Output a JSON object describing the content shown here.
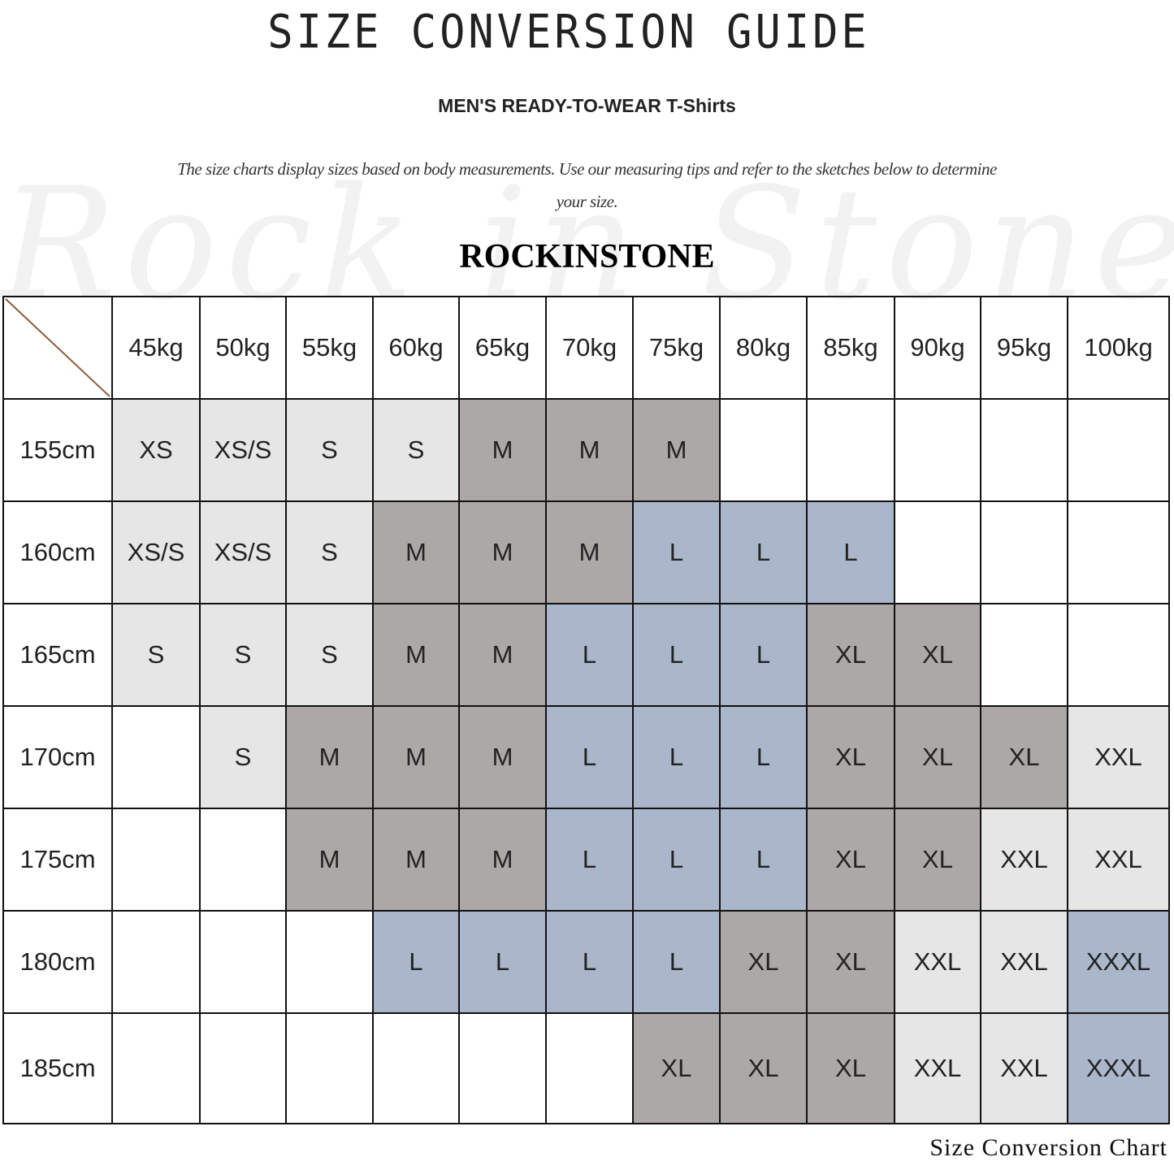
{
  "title": "SIZE CONVERSION GUIDE",
  "subtitle": "MEN'S READY-TO-WEAR T-Shirts",
  "description": "The size charts display sizes based on body measurements. Use our measuring tips and refer to the sketches below to determine your size.",
  "watermark": "Rock in Stone",
  "brand": "ROCKINSTONE",
  "footer": "Size Conversion Chart",
  "colors": {
    "light": "#e6e6e6",
    "dark": "#aca8a7",
    "blue": "#aab6ca",
    "corner_line": "#8b5a3c"
  },
  "size_color_map": {
    "XS": "light",
    "XS/S": "light",
    "S": "light",
    "M": "dark",
    "L": "blue",
    "XL": "dark",
    "XXL": "light",
    "XXXL": "blue"
  },
  "table": {
    "weights": [
      "45kg",
      "50kg",
      "55kg",
      "60kg",
      "65kg",
      "70kg",
      "75kg",
      "80kg",
      "85kg",
      "90kg",
      "95kg",
      "100kg"
    ],
    "rows": [
      {
        "height": "155cm",
        "sizes": [
          "XS",
          "XS/S",
          "S",
          "S",
          "M",
          "M",
          "M",
          "",
          "",
          "",
          "",
          ""
        ]
      },
      {
        "height": "160cm",
        "sizes": [
          "XS/S",
          "XS/S",
          "S",
          "M",
          "M",
          "M",
          "L",
          "L",
          "L",
          "",
          "",
          ""
        ]
      },
      {
        "height": "165cm",
        "sizes": [
          "S",
          "S",
          "S",
          "M",
          "M",
          "L",
          "L",
          "L",
          "XL",
          "XL",
          "",
          ""
        ]
      },
      {
        "height": "170cm",
        "sizes": [
          "",
          "S",
          "M",
          "M",
          "M",
          "L",
          "L",
          "L",
          "XL",
          "XL",
          "XL",
          "XXL"
        ]
      },
      {
        "height": "175cm",
        "sizes": [
          "",
          "",
          "M",
          "M",
          "M",
          "L",
          "L",
          "L",
          "XL",
          "XL",
          "XXL",
          "XXL"
        ]
      },
      {
        "height": "180cm",
        "sizes": [
          "",
          "",
          "",
          "L",
          "L",
          "L",
          "L",
          "XL",
          "XL",
          "XXL",
          "XXL",
          "XXXL"
        ]
      },
      {
        "height": "185cm",
        "sizes": [
          "",
          "",
          "",
          "",
          "",
          "",
          "XL",
          "XL",
          "XL",
          "XXL",
          "XXL",
          "XXXL"
        ]
      }
    ]
  }
}
